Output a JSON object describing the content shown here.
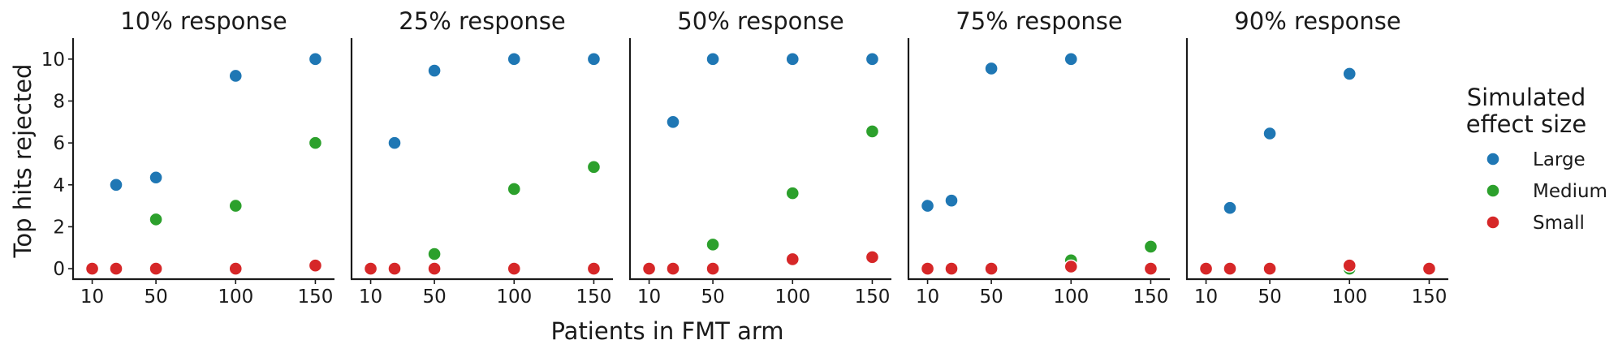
{
  "chart_data": {
    "type": "scatter",
    "facets": [
      "10% response",
      "25% response",
      "50% response",
      "75% response",
      "90% response"
    ],
    "xlabel": "Patients in FMT arm",
    "ylabel": "Top hits rejected",
    "xticks": [
      10,
      50,
      100,
      150
    ],
    "yticks": [
      0,
      2,
      4,
      6,
      8,
      10
    ],
    "xlim": [
      -2,
      162
    ],
    "ylim": [
      -0.5,
      11
    ],
    "grid": false,
    "legend": {
      "title_line1": "Simulated",
      "title_line2": "effect size",
      "placement": "right",
      "entries": [
        "Large",
        "Medium",
        "Small"
      ]
    },
    "colors": {
      "Large": "#1f77b4",
      "Medium": "#2ca02c",
      "Small": "#d62728"
    },
    "series": [
      {
        "name": "Large",
        "panels": [
          [
            [
              10,
              0
            ],
            [
              25,
              4
            ],
            [
              50,
              4.35
            ],
            [
              100,
              9.2
            ],
            [
              150,
              10
            ]
          ],
          [
            [
              10,
              0
            ],
            [
              25,
              6
            ],
            [
              50,
              9.45
            ],
            [
              100,
              10
            ],
            [
              150,
              10
            ]
          ],
          [
            [
              10,
              0
            ],
            [
              25,
              7
            ],
            [
              50,
              10
            ],
            [
              100,
              10
            ],
            [
              150,
              10
            ]
          ],
          [
            [
              10,
              3
            ],
            [
              25,
              3.25
            ],
            [
              50,
              9.55
            ],
            [
              100,
              10
            ]
          ],
          [
            [
              10,
              0
            ],
            [
              25,
              2.9
            ],
            [
              50,
              6.45
            ],
            [
              100,
              9.3
            ]
          ]
        ]
      },
      {
        "name": "Medium",
        "panels": [
          [
            [
              10,
              0
            ],
            [
              25,
              0
            ],
            [
              50,
              2.35
            ],
            [
              100,
              3
            ],
            [
              150,
              6
            ]
          ],
          [
            [
              10,
              0
            ],
            [
              25,
              0
            ],
            [
              50,
              0.7
            ],
            [
              100,
              3.8
            ],
            [
              150,
              4.85
            ]
          ],
          [
            [
              10,
              0
            ],
            [
              25,
              0
            ],
            [
              50,
              1.15
            ],
            [
              100,
              3.6
            ],
            [
              150,
              6.55
            ]
          ],
          [
            [
              10,
              0
            ],
            [
              25,
              0
            ],
            [
              50,
              0
            ],
            [
              100,
              0.4
            ],
            [
              150,
              1.05
            ]
          ],
          [
            [
              10,
              0
            ],
            [
              25,
              0
            ],
            [
              50,
              0
            ],
            [
              100,
              0
            ],
            [
              150,
              0
            ]
          ]
        ]
      },
      {
        "name": "Small",
        "panels": [
          [
            [
              10,
              0
            ],
            [
              25,
              0
            ],
            [
              50,
              0
            ],
            [
              100,
              0
            ],
            [
              150,
              0.15
            ]
          ],
          [
            [
              10,
              0
            ],
            [
              25,
              0
            ],
            [
              50,
              0
            ],
            [
              100,
              0
            ],
            [
              150,
              0
            ]
          ],
          [
            [
              10,
              0
            ],
            [
              25,
              0
            ],
            [
              50,
              0
            ],
            [
              100,
              0.45
            ],
            [
              150,
              0.55
            ]
          ],
          [
            [
              10,
              0
            ],
            [
              25,
              0
            ],
            [
              50,
              0
            ],
            [
              100,
              0.1
            ],
            [
              150,
              0
            ]
          ],
          [
            [
              10,
              0
            ],
            [
              25,
              0
            ],
            [
              50,
              0
            ],
            [
              100,
              0.15
            ],
            [
              150,
              0
            ]
          ]
        ]
      }
    ]
  }
}
